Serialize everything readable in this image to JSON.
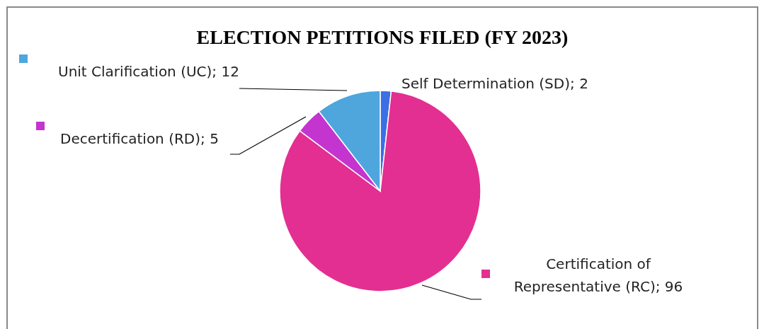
{
  "chart_data": {
    "type": "pie",
    "title": "ELECTION PETITIONS FILED (FY 2023)",
    "categories": [
      "Self Determination (SD)",
      "Certification of Representative (RC)",
      "Decertification (RD)",
      "Unit Clarification (UC)"
    ],
    "values": [
      2,
      96,
      5,
      12
    ],
    "value_labels": [
      "; 2",
      "; 96",
      "; 5",
      "; 12"
    ],
    "colors": [
      "#3b6fe3",
      "#e32f91",
      "#c434cf",
      "#4ea6dd"
    ]
  }
}
